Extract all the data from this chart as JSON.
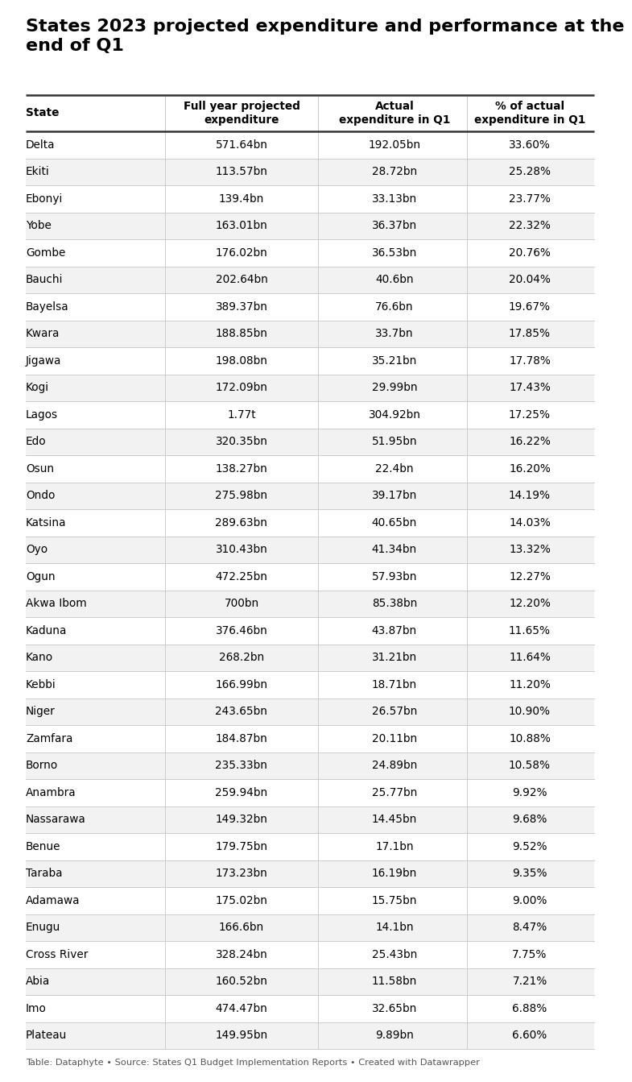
{
  "title": "States 2023 projected expenditure and performance at the\nend of Q1",
  "footer": "Table: Dataphyte • Source: States Q1 Budget Implementation Reports • Created with Datawrapper",
  "col_headers": [
    "State",
    "Full year projected\nexpenditure",
    "Actual\nexpenditure in Q1",
    "% of actual\nexpenditure in Q1"
  ],
  "rows": [
    [
      "Delta",
      "571.64bn",
      "192.05bn",
      "33.60%"
    ],
    [
      "Ekiti",
      "113.57bn",
      "28.72bn",
      "25.28%"
    ],
    [
      "Ebonyi",
      "139.4bn",
      "33.13bn",
      "23.77%"
    ],
    [
      "Yobe",
      "163.01bn",
      "36.37bn",
      "22.32%"
    ],
    [
      "Gombe",
      "176.02bn",
      "36.53bn",
      "20.76%"
    ],
    [
      "Bauchi",
      "202.64bn",
      "40.6bn",
      "20.04%"
    ],
    [
      "Bayelsa",
      "389.37bn",
      "76.6bn",
      "19.67%"
    ],
    [
      "Kwara",
      "188.85bn",
      "33.7bn",
      "17.85%"
    ],
    [
      "Jigawa",
      "198.08bn",
      "35.21bn",
      "17.78%"
    ],
    [
      "Kogi",
      "172.09bn",
      "29.99bn",
      "17.43%"
    ],
    [
      "Lagos",
      "1.77t",
      "304.92bn",
      "17.25%"
    ],
    [
      "Edo",
      "320.35bn",
      "51.95bn",
      "16.22%"
    ],
    [
      "Osun",
      "138.27bn",
      "22.4bn",
      "16.20%"
    ],
    [
      "Ondo",
      "275.98bn",
      "39.17bn",
      "14.19%"
    ],
    [
      "Katsina",
      "289.63bn",
      "40.65bn",
      "14.03%"
    ],
    [
      "Oyo",
      "310.43bn",
      "41.34bn",
      "13.32%"
    ],
    [
      "Ogun",
      "472.25bn",
      "57.93bn",
      "12.27%"
    ],
    [
      "Akwa Ibom",
      "700bn",
      "85.38bn",
      "12.20%"
    ],
    [
      "Kaduna",
      "376.46bn",
      "43.87bn",
      "11.65%"
    ],
    [
      "Kano",
      "268.2bn",
      "31.21bn",
      "11.64%"
    ],
    [
      "Kebbi",
      "166.99bn",
      "18.71bn",
      "11.20%"
    ],
    [
      "Niger",
      "243.65bn",
      "26.57bn",
      "10.90%"
    ],
    [
      "Zamfara",
      "184.87bn",
      "20.11bn",
      "10.88%"
    ],
    [
      "Borno",
      "235.33bn",
      "24.89bn",
      "10.58%"
    ],
    [
      "Anambra",
      "259.94bn",
      "25.77bn",
      "9.92%"
    ],
    [
      "Nassarawa",
      "149.32bn",
      "14.45bn",
      "9.68%"
    ],
    [
      "Benue",
      "179.75bn",
      "17.1bn",
      "9.52%"
    ],
    [
      "Taraba",
      "173.23bn",
      "16.19bn",
      "9.35%"
    ],
    [
      "Adamawa",
      "175.02bn",
      "15.75bn",
      "9.00%"
    ],
    [
      "Enugu",
      "166.6bn",
      "14.1bn",
      "8.47%"
    ],
    [
      "Cross River",
      "328.24bn",
      "25.43bn",
      "7.75%"
    ],
    [
      "Abia",
      "160.52bn",
      "11.58bn",
      "7.21%"
    ],
    [
      "Imo",
      "474.47bn",
      "32.65bn",
      "6.88%"
    ],
    [
      "Plateau",
      "149.95bn",
      "9.89bn",
      "6.60%"
    ]
  ],
  "bg_color": "#ffffff",
  "row_even_bg": "#f2f2f2",
  "row_odd_bg": "#ffffff",
  "text_color": "#000000",
  "header_text_color": "#000000",
  "footer_color": "#555555",
  "divider_dark": "#333333",
  "divider_light": "#cccccc"
}
